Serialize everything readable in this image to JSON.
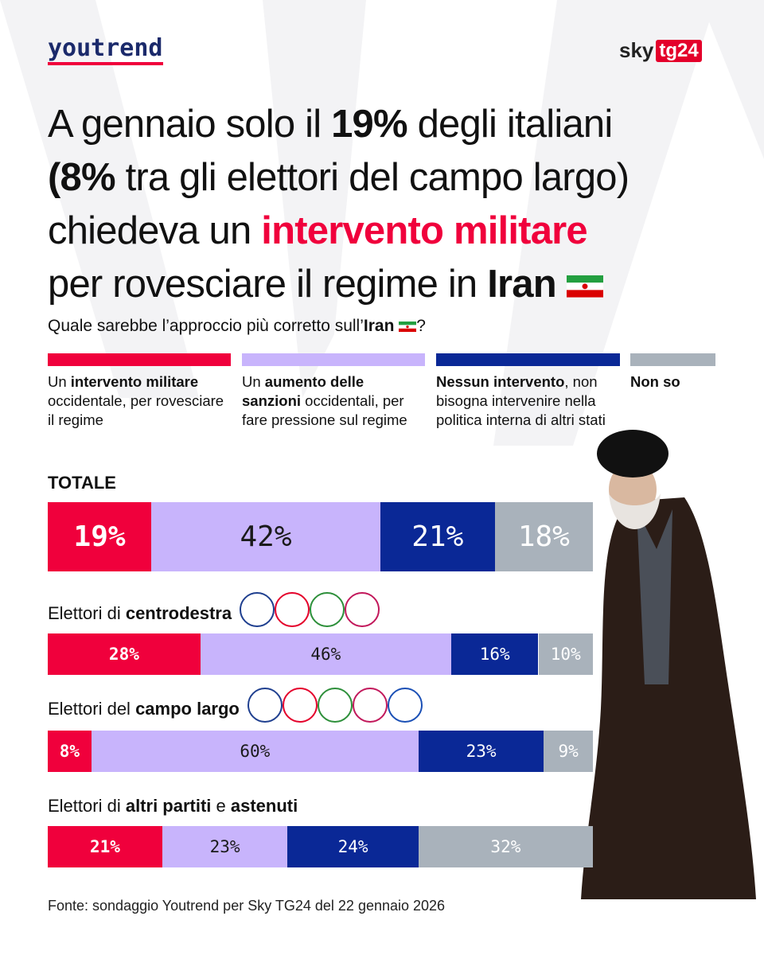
{
  "header": {
    "brand": "youtrend",
    "partner": [
      "sky",
      "tg24"
    ]
  },
  "chart_data": {
    "type": "stacked-bar",
    "orientation": "horizontal",
    "title": [
      "A gennaio solo il 19% degli italiani",
      "(8% tra gli elettori del campo largo)",
      "chiedeva un intervento militare",
      "per rovesciare il regime in Iran"
    ],
    "title_bold": [
      "19%",
      "(8%",
      "Iran"
    ],
    "title_highlight": [
      "intervento militare"
    ],
    "highlight_color": "#f0003c",
    "flag": "IR",
    "subtitle": [
      "Quale sarebbe l’approccio più corretto sull’Iran",
      "?"
    ],
    "subtitle_bold": [
      "Iran"
    ],
    "categories": [
      "TOTALE",
      "Elettori di centrodestra",
      "Elettori del campo largo",
      "Elettori di altri partiti e astenuti"
    ],
    "category_bold": [
      [
        "TOTALE"
      ],
      [
        "centrodestra"
      ],
      [
        "campo largo"
      ],
      [
        "altri partiti",
        "astenuti"
      ]
    ],
    "xlim": [
      0,
      100
    ],
    "series": [
      {
        "name": "Un intervento militare occidentale, per rovesciare il regime",
        "bold": [
          "intervento militare"
        ],
        "color": "#f0003c",
        "label_color": "#ffffff",
        "values": [
          19,
          28,
          8,
          21
        ],
        "value_labels": [
          "19%",
          "28%",
          "8%",
          "21%"
        ]
      },
      {
        "name": "Un aumento delle sanzioni occidentali, per fare pressione sul regime",
        "bold": [
          "aumento delle sanzioni"
        ],
        "color": "#c8b4fc",
        "label_color": "#1a1a1a",
        "values": [
          42,
          46,
          60,
          23
        ],
        "value_labels": [
          "42%",
          "46%",
          "60%",
          "23%"
        ]
      },
      {
        "name": "Nessun intervento, non bisogna intervenire nella politica interna di altri stati",
        "bold": [
          "Nessun intervento"
        ],
        "color": "#0a2896",
        "label_color": "#ffffff",
        "values": [
          21,
          16,
          23,
          24
        ],
        "value_labels": [
          "21%",
          "16%",
          "23%",
          "24%"
        ]
      },
      {
        "name": "Non so",
        "bold": [
          "Non so"
        ],
        "color": "#a9b2bb",
        "label_color": "#ffffff",
        "values": [
          18,
          10,
          9,
          32
        ],
        "value_labels": [
          "18%",
          "10%",
          "9%",
          "32%"
        ]
      }
    ],
    "source": "Fonte: sondaggio Youtrend per Sky TG24 del 22 gennaio 2026"
  }
}
